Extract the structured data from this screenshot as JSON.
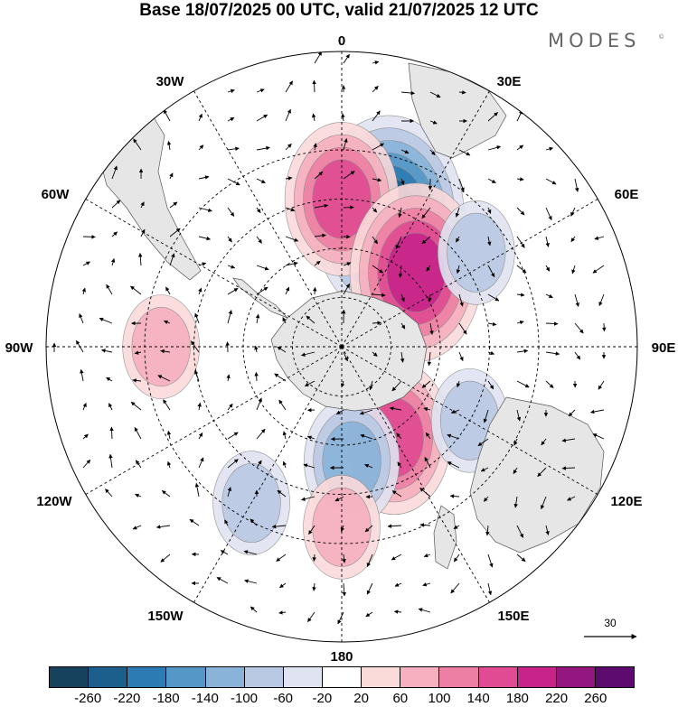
{
  "title": "Base 18/07/2025 00 UTC, valid 21/07/2025 12 UTC",
  "brand": {
    "name": "MODES",
    "mark": "©"
  },
  "longitude_labels": [
    "0",
    "30E",
    "60E",
    "90E",
    "120E",
    "150E",
    "180",
    "150W",
    "120W",
    "90W",
    "60W",
    "30W"
  ],
  "reference_vector": {
    "value": "30"
  },
  "colorbar": {
    "colors": [
      "#17425e",
      "#1d5f8c",
      "#2d7bb3",
      "#5598c8",
      "#8ab3d9",
      "#b9c9e3",
      "#e0e3f1",
      "#ffffff",
      "#fbdada",
      "#f6b0bf",
      "#ee7fa4",
      "#e14b93",
      "#c7238a",
      "#94167f",
      "#5d0b6f"
    ],
    "ticks": [
      "-260",
      "-220",
      "-180",
      "-140",
      "-100",
      "-60",
      "-20",
      "20",
      "60",
      "100",
      "140",
      "180",
      "220",
      "260"
    ]
  },
  "map": {
    "projection": "south polar stereographic",
    "center_marker": "south-pole",
    "anomaly_centers": [
      {
        "id": "neg-0-30E",
        "value": -220,
        "lon": 20,
        "lat": -48
      },
      {
        "id": "pos-0",
        "value": 140,
        "lon": 0,
        "lat": -45
      },
      {
        "id": "pos-45E",
        "value": 180,
        "lon": 45,
        "lat": -58
      },
      {
        "id": "neg-60E",
        "value": -80,
        "lon": 55,
        "lat": -40
      },
      {
        "id": "pos-150E",
        "value": 140,
        "lon": 150,
        "lat": -58
      },
      {
        "id": "neg-180",
        "value": -100,
        "lon": 175,
        "lat": -55
      },
      {
        "id": "pos-180",
        "value": 60,
        "lon": 180,
        "lat": -35
      },
      {
        "id": "neg-150W",
        "value": -60,
        "lon": -150,
        "lat": -35
      },
      {
        "id": "pos-90W",
        "value": 60,
        "lon": -90,
        "lat": -35
      },
      {
        "id": "neg-120E",
        "value": -80,
        "lon": 120,
        "lat": -45
      }
    ]
  }
}
